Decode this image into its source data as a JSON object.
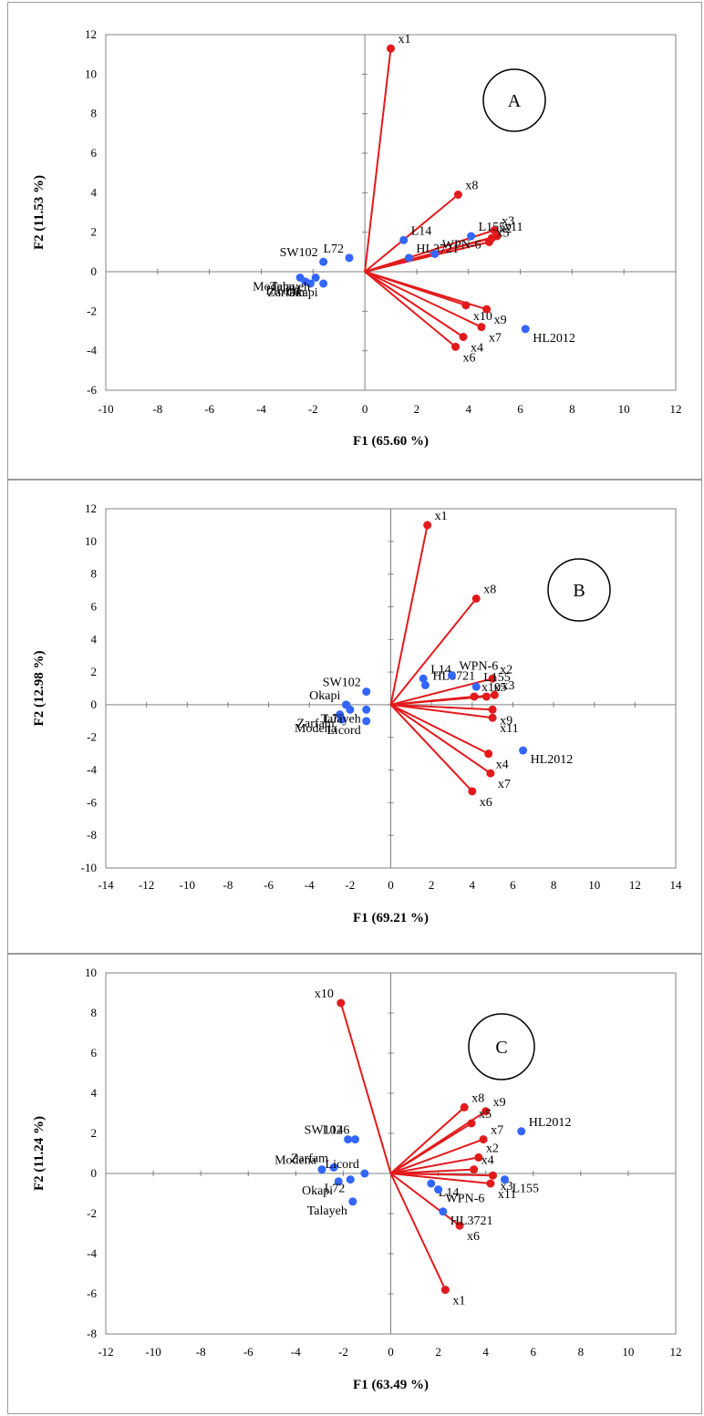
{
  "chart_data": [
    {
      "type": "scatter",
      "panel_label": "A",
      "xlabel": "F1 (65.60 %)",
      "ylabel": "F2 (11.53 %)",
      "xlim": [
        -10,
        12
      ],
      "ylim": [
        -6,
        12
      ],
      "xticks": [
        "-10",
        "-8",
        "-6",
        "-4",
        "-2",
        "0",
        "2",
        "4",
        "6",
        "8",
        "10",
        "12"
      ],
      "yticks": [
        "-6",
        "-4",
        "-2",
        "0",
        "2",
        "4",
        "6",
        "8",
        "10",
        "12"
      ],
      "colors": {
        "variables": "#e31a1c",
        "observations": "#3366ff"
      },
      "variables": [
        {
          "name": "x1",
          "x": 1.0,
          "y": 11.3
        },
        {
          "name": "x8",
          "x": 3.6,
          "y": 3.9
        },
        {
          "name": "x3",
          "x": 5.0,
          "y": 2.1
        },
        {
          "name": "x11",
          "x": 5.1,
          "y": 1.8
        },
        {
          "name": "x2",
          "x": 4.9,
          "y": 1.7
        },
        {
          "name": "x5",
          "x": 4.8,
          "y": 1.5
        },
        {
          "name": "x10",
          "x": 3.9,
          "y": -1.7
        },
        {
          "name": "x9",
          "x": 4.7,
          "y": -1.9
        },
        {
          "name": "x7",
          "x": 4.5,
          "y": -2.8
        },
        {
          "name": "x4",
          "x": 3.8,
          "y": -3.3
        },
        {
          "name": "x6",
          "x": 3.5,
          "y": -3.8
        }
      ],
      "observations": [
        {
          "name": "L14",
          "x": 1.5,
          "y": 1.6
        },
        {
          "name": "L155",
          "x": 4.1,
          "y": 1.8
        },
        {
          "name": "HL3721",
          "x": 1.7,
          "y": 0.7
        },
        {
          "name": "WPN-6",
          "x": 2.7,
          "y": 0.9
        },
        {
          "name": "SW102",
          "x": -1.6,
          "y": 0.5
        },
        {
          "name": "L72",
          "x": -0.6,
          "y": 0.7
        },
        {
          "name": "HL2012",
          "x": 6.2,
          "y": -2.9
        },
        {
          "name": "Modena",
          "x": -2.5,
          "y": -0.3
        },
        {
          "name": "Licord",
          "x": -2.3,
          "y": -0.5
        },
        {
          "name": "Zarfam",
          "x": -2.1,
          "y": -0.6
        },
        {
          "name": "Talayeh",
          "x": -1.9,
          "y": -0.3
        },
        {
          "name": "Okapi",
          "x": -1.6,
          "y": -0.6
        }
      ],
      "point_labels": {
        "variables": [
          "x1",
          "x8",
          "x3",
          "x11",
          "x2",
          "x5",
          "x10",
          "x9",
          "x7",
          "x4",
          "x6"
        ],
        "observations": [
          "L14",
          "L155",
          "HL3721",
          "WPN-6",
          "SW102",
          "L72",
          "HL2012",
          "Modena",
          "Licord",
          "Zarfam",
          "Talayeh",
          "Okapi"
        ]
      }
    },
    {
      "type": "scatter",
      "panel_label": "B",
      "xlabel": "F1 (69.21 %)",
      "ylabel": "F2 (12.98 %)",
      "xlim": [
        -14,
        14
      ],
      "ylim": [
        -10,
        12
      ],
      "xticks": [
        "-14",
        "-12",
        "-10",
        "-8",
        "-6",
        "-4",
        "-2",
        "0",
        "2",
        "4",
        "6",
        "8",
        "10",
        "12",
        "14"
      ],
      "yticks": [
        "-10",
        "-8",
        "-6",
        "-4",
        "-2",
        "0",
        "2",
        "4",
        "6",
        "8",
        "10",
        "12"
      ],
      "colors": {
        "variables": "#e31a1c",
        "observations": "#3366ff"
      },
      "variables": [
        {
          "name": "x1",
          "x": 1.8,
          "y": 11.0
        },
        {
          "name": "x8",
          "x": 4.2,
          "y": 6.5
        },
        {
          "name": "x2",
          "x": 5.0,
          "y": 1.6
        },
        {
          "name": "x3",
          "x": 5.1,
          "y": 0.6
        },
        {
          "name": "x5",
          "x": 4.7,
          "y": 0.5
        },
        {
          "name": "x10",
          "x": 4.1,
          "y": 0.5
        },
        {
          "name": "x9",
          "x": 5.0,
          "y": -0.3
        },
        {
          "name": "x11",
          "x": 5.0,
          "y": -0.8
        },
        {
          "name": "x4",
          "x": 4.8,
          "y": -3.0
        },
        {
          "name": "x7",
          "x": 4.9,
          "y": -4.2
        },
        {
          "name": "x6",
          "x": 4.0,
          "y": -5.3
        }
      ],
      "observations": [
        {
          "name": "L14",
          "x": 1.6,
          "y": 1.6
        },
        {
          "name": "HL3721",
          "x": 1.7,
          "y": 1.2
        },
        {
          "name": "WPN-6",
          "x": 3.0,
          "y": 1.8
        },
        {
          "name": "L155",
          "x": 4.2,
          "y": 1.1
        },
        {
          "name": "SW102",
          "x": -1.2,
          "y": 0.8
        },
        {
          "name": "Okapi",
          "x": -2.2,
          "y": 0.0
        },
        {
          "name": "Zarfam",
          "x": -2.5,
          "y": -0.6
        },
        {
          "name": "L72",
          "x": -2.0,
          "y": -0.3
        },
        {
          "name": "Modena",
          "x": -2.4,
          "y": -0.9
        },
        {
          "name": "Talayeh",
          "x": -1.2,
          "y": -0.3
        },
        {
          "name": "Licord",
          "x": -1.2,
          "y": -1.0
        },
        {
          "name": "HL2012",
          "x": 6.5,
          "y": -2.8
        }
      ],
      "point_labels": {
        "variables": [
          "x1",
          "x8",
          "x2",
          "x3",
          "x5",
          "x10",
          "x9",
          "x11",
          "x4",
          "x7",
          "x6"
        ],
        "observations": [
          "L14",
          "HL3721",
          "WPN-6",
          "L155",
          "SW102",
          "Okapi",
          "Zarfam",
          "L72",
          "Modena",
          "Talayeh",
          "Licord",
          "HL2012"
        ]
      }
    },
    {
      "type": "scatter",
      "panel_label": "C",
      "xlabel": "F1 (63.49 %)",
      "ylabel": "F2 (11.24 %)",
      "xlim": [
        -12,
        12
      ],
      "ylim": [
        -8,
        10
      ],
      "xticks": [
        "-12",
        "-10",
        "-8",
        "-6",
        "-4",
        "-2",
        "0",
        "2",
        "4",
        "6",
        "8",
        "10",
        "12"
      ],
      "yticks": [
        "-8",
        "-6",
        "-4",
        "-2",
        "0",
        "2",
        "4",
        "6",
        "8",
        "10"
      ],
      "colors": {
        "variables": "#e31a1c",
        "observations": "#3366ff"
      },
      "variables": [
        {
          "name": "x10",
          "x": -2.1,
          "y": 8.5
        },
        {
          "name": "x8",
          "x": 3.1,
          "y": 3.3
        },
        {
          "name": "x9",
          "x": 4.0,
          "y": 3.1
        },
        {
          "name": "x5",
          "x": 3.4,
          "y": 2.5
        },
        {
          "name": "x7",
          "x": 3.9,
          "y": 1.7
        },
        {
          "name": "x2",
          "x": 3.7,
          "y": 0.8
        },
        {
          "name": "x4",
          "x": 3.5,
          "y": 0.2
        },
        {
          "name": "x3",
          "x": 4.3,
          "y": -0.1
        },
        {
          "name": "x11",
          "x": 4.2,
          "y": -0.5
        },
        {
          "name": "x6",
          "x": 2.9,
          "y": -2.6
        },
        {
          "name": "x1",
          "x": 2.3,
          "y": -5.8
        }
      ],
      "observations": [
        {
          "name": "HL2012",
          "x": 5.5,
          "y": 2.1
        },
        {
          "name": "L155",
          "x": 4.8,
          "y": -0.3
        },
        {
          "name": "L14",
          "x": 1.7,
          "y": -0.5
        },
        {
          "name": "WPN-6",
          "x": 2.0,
          "y": -0.8
        },
        {
          "name": "HL3721",
          "x": 2.2,
          "y": -1.9
        },
        {
          "name": "SW102",
          "x": -1.8,
          "y": 1.7
        },
        {
          "name": "L146",
          "x": -1.5,
          "y": 1.7
        },
        {
          "name": "Modena",
          "x": -2.9,
          "y": 0.2
        },
        {
          "name": "Zarfam",
          "x": -2.4,
          "y": 0.3
        },
        {
          "name": "Licord",
          "x": -1.1,
          "y": 0.0
        },
        {
          "name": "Okapi",
          "x": -2.2,
          "y": -0.4
        },
        {
          "name": "L72",
          "x": -1.7,
          "y": -0.3
        },
        {
          "name": "Talayeh",
          "x": -1.6,
          "y": -1.4
        }
      ],
      "point_labels": {
        "variables": [
          "x10",
          "x8",
          "x9",
          "x5",
          "x7",
          "x2",
          "x4",
          "x3",
          "x11",
          "x6",
          "x1"
        ],
        "observations": [
          "HL2012",
          "L155",
          "L14",
          "WPN-6",
          "HL3721",
          "SW102",
          "L146",
          "Modena",
          "Zarfam",
          "Licord",
          "Okapi",
          "L72",
          "Talayeh"
        ]
      }
    }
  ]
}
